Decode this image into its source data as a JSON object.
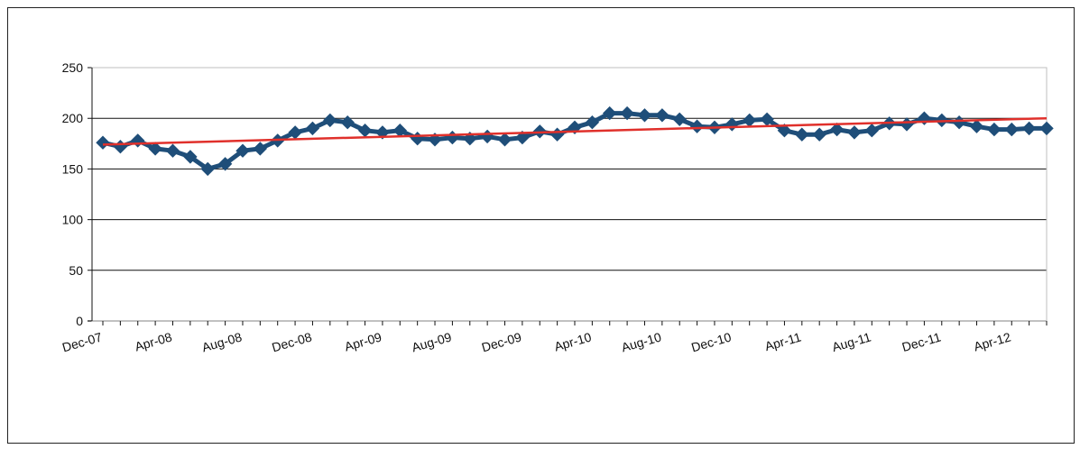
{
  "chart_data": {
    "type": "line",
    "y_ticks": [
      0,
      50,
      100,
      150,
      200,
      250
    ],
    "x_tick_labels": [
      "Dec-07",
      "Apr-08",
      "Aug-08",
      "Dec-08",
      "Apr-09",
      "Aug-09",
      "Dec-09",
      "Apr-10",
      "Aug-10",
      "Dec-10",
      "Apr-11",
      "Aug-11",
      "Dec-11",
      "Apr-12"
    ],
    "ylim": [
      0,
      250
    ],
    "grid": true,
    "legend": "none",
    "series": [
      {
        "x": [
          "Dec-07",
          "Jan-08",
          "Feb-08",
          "Mar-08",
          "Apr-08",
          "May-08",
          "Jun-08",
          "Jul-08",
          "Aug-08",
          "Sep-08",
          "Oct-08",
          "Nov-08",
          "Dec-08",
          "Jan-09",
          "Feb-09",
          "Mar-09",
          "Apr-09",
          "May-09",
          "Jun-09",
          "Jul-09",
          "Aug-09",
          "Sep-09",
          "Oct-09",
          "Nov-09",
          "Dec-09",
          "Jan-10",
          "Feb-10",
          "Mar-10",
          "Apr-10",
          "May-10",
          "Jun-10",
          "Jul-10",
          "Aug-10",
          "Sep-10",
          "Oct-10",
          "Nov-10",
          "Dec-10",
          "Jan-11",
          "Feb-11",
          "Mar-11",
          "Apr-11",
          "May-11",
          "Jun-11",
          "Jul-11",
          "Aug-11",
          "Sep-11",
          "Oct-11",
          "Nov-11",
          "Dec-11",
          "Jan-12",
          "Feb-12",
          "Mar-12",
          "Apr-12",
          "May-12",
          "Jun-12"
        ],
        "values": [
          176,
          172,
          178,
          170,
          168,
          162,
          150,
          155,
          168,
          170,
          178,
          186,
          190,
          198,
          196,
          188,
          186,
          188,
          180,
          179,
          181,
          180,
          182,
          179,
          181,
          187,
          184,
          191,
          196,
          205,
          205,
          203,
          203,
          199,
          192,
          191,
          194,
          198,
          199,
          188,
          184,
          184,
          189,
          186,
          188,
          195,
          194,
          200,
          198,
          196,
          192,
          189,
          189,
          190,
          190
        ],
        "color": "#1f4e79"
      },
      {
        "x": [
          "Dec-07",
          "Jun-12"
        ],
        "values": [
          174,
          200
        ],
        "color": "#e0302b"
      }
    ]
  }
}
